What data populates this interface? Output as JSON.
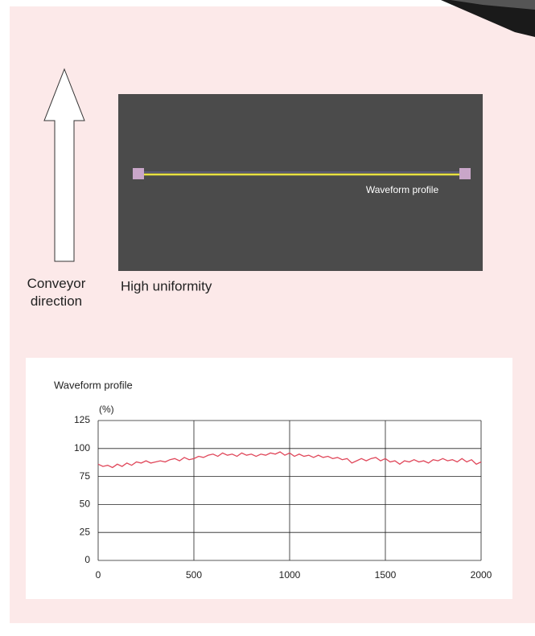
{
  "arrow": {
    "label": "Conveyor direction"
  },
  "image": {
    "overlay_label": "Waveform profile",
    "caption": "High uniformity"
  },
  "chart_data": {
    "type": "line",
    "title": "Waveform profile",
    "y_label": "(%)",
    "x": [
      0,
      25,
      50,
      75,
      100,
      125,
      150,
      175,
      200,
      225,
      250,
      275,
      300,
      325,
      350,
      375,
      400,
      425,
      450,
      475,
      500,
      525,
      550,
      575,
      600,
      625,
      650,
      675,
      700,
      725,
      750,
      775,
      800,
      825,
      850,
      875,
      900,
      925,
      950,
      975,
      1000,
      1025,
      1050,
      1075,
      1100,
      1125,
      1150,
      1175,
      1200,
      1225,
      1250,
      1275,
      1300,
      1325,
      1350,
      1375,
      1400,
      1425,
      1450,
      1475,
      1500,
      1525,
      1550,
      1575,
      1600,
      1625,
      1650,
      1675,
      1700,
      1725,
      1750,
      1775,
      1800,
      1825,
      1850,
      1875,
      1900,
      1925,
      1950,
      1975,
      2000
    ],
    "values": [
      86,
      84,
      85,
      83,
      86,
      84,
      87,
      85,
      88,
      87,
      89,
      87,
      88,
      89,
      88,
      90,
      91,
      89,
      92,
      90,
      91,
      93,
      92,
      94,
      95,
      93,
      96,
      94,
      95,
      93,
      96,
      94,
      95,
      93,
      95,
      94,
      96,
      95,
      97,
      94,
      96,
      93,
      95,
      93,
      94,
      92,
      94,
      92,
      93,
      91,
      92,
      90,
      91,
      87,
      89,
      91,
      89,
      91,
      92,
      89,
      91,
      88,
      89,
      86,
      89,
      88,
      90,
      88,
      89,
      87,
      90,
      89,
      91,
      89,
      90,
      88,
      91,
      88,
      90,
      86,
      88
    ],
    "color": "#e0475a",
    "xlim": [
      0,
      2000
    ],
    "xticks": [
      0,
      500,
      1000,
      1500,
      2000
    ],
    "ylim": [
      0,
      125
    ],
    "yticks": [
      0,
      25,
      50,
      75,
      100,
      125
    ],
    "grid": true
  }
}
